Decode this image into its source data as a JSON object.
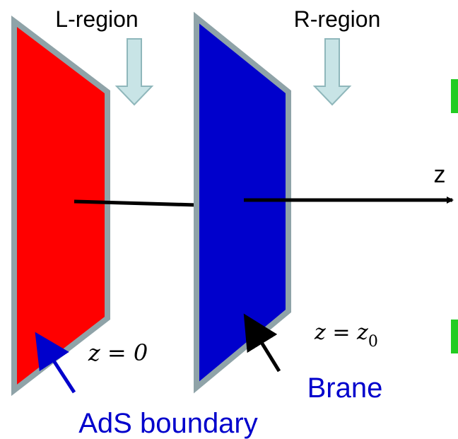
{
  "labels": {
    "l_region": "L-region",
    "r_region": "R-region",
    "axis": "z",
    "boundary_eq": "z = 0",
    "brane_eq": {
      "base": "z = z",
      "sub": "0"
    },
    "brane": "Brane",
    "boundary": "AdS boundary"
  }
}
